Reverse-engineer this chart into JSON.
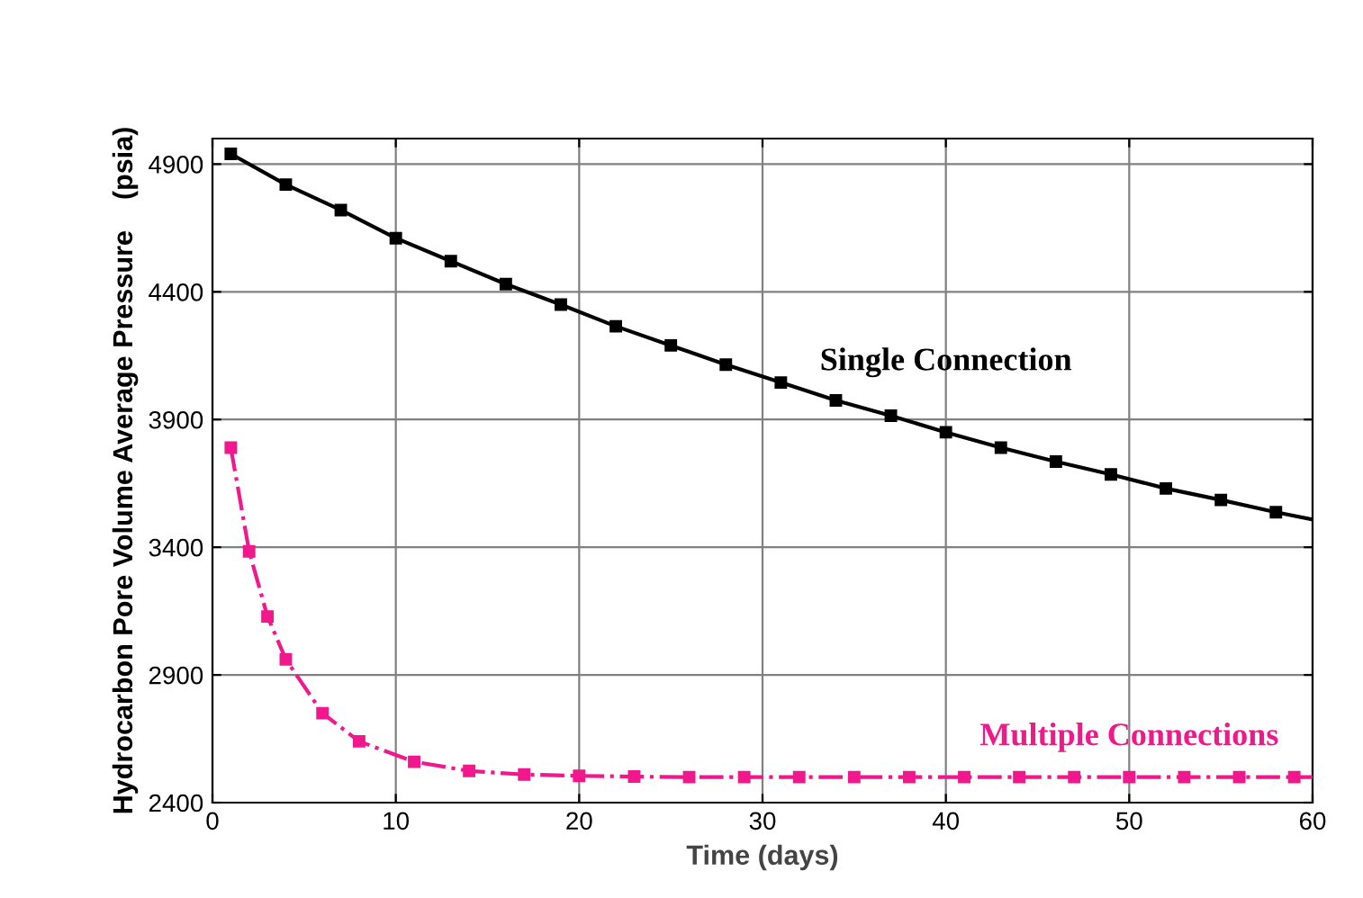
{
  "chart_data": {
    "type": "line",
    "xlabel": "Time (days)",
    "ylabel": "Hydrocarbon Pore Volume Average Pressure    (psia)",
    "xlim": [
      0,
      60
    ],
    "xticks": [
      0,
      10,
      20,
      30,
      40,
      50,
      60
    ],
    "ylim": [
      2400,
      5000
    ],
    "yticks": [
      2400,
      2900,
      3400,
      3900,
      4400,
      4900
    ],
    "grid": true,
    "marker": "square",
    "series": [
      {
        "name": "Single Connection",
        "color": "#000000",
        "line_style": "solid",
        "x": [
          1,
          4,
          7,
          10,
          13,
          16,
          19,
          22,
          25,
          28,
          31,
          34,
          37,
          40,
          43,
          46,
          49,
          52,
          55,
          58,
          60
        ],
        "values": [
          4940,
          4820,
          4720,
          4610,
          4520,
          4430,
          4350,
          4265,
          4190,
          4115,
          4045,
          3975,
          3915,
          3850,
          3790,
          3735,
          3685,
          3630,
          3585,
          3537,
          3508
        ]
      },
      {
        "name": "Multiple Connections",
        "color": "#f0188c",
        "line_style": "dashed",
        "x": [
          1,
          2,
          3,
          4,
          6,
          8,
          11,
          14,
          17,
          20,
          23,
          26,
          29,
          32,
          35,
          38,
          41,
          44,
          47,
          50,
          53,
          56,
          59,
          60
        ],
        "values": [
          3790,
          3384,
          3129,
          2961,
          2750,
          2640,
          2560,
          2524,
          2510,
          2505,
          2502,
          2500,
          2500,
          2500,
          2500,
          2500,
          2500,
          2500,
          2500,
          2500,
          2500,
          2500,
          2500,
          2500
        ]
      }
    ]
  }
}
